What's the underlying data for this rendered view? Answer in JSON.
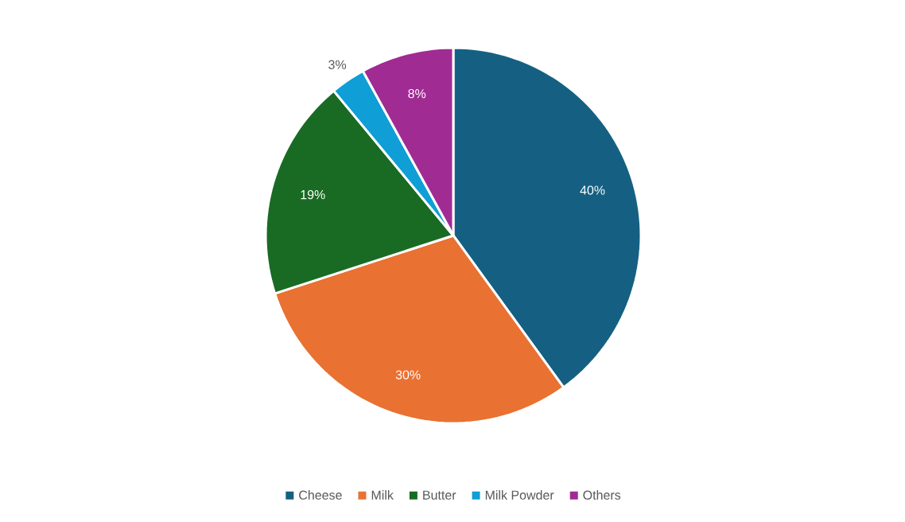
{
  "chart_data": {
    "type": "pie",
    "categories": [
      "Cheese",
      "Milk",
      "Butter",
      "Milk Powder",
      "Others"
    ],
    "values": [
      40,
      30,
      19,
      3,
      8
    ],
    "colors": [
      "#156082",
      "#e97132",
      "#196b24",
      "#0f9ed5",
      "#a02b93"
    ],
    "value_labels": [
      "40%",
      "30%",
      "19%",
      "3%",
      "8%"
    ],
    "legend": "bottom"
  }
}
